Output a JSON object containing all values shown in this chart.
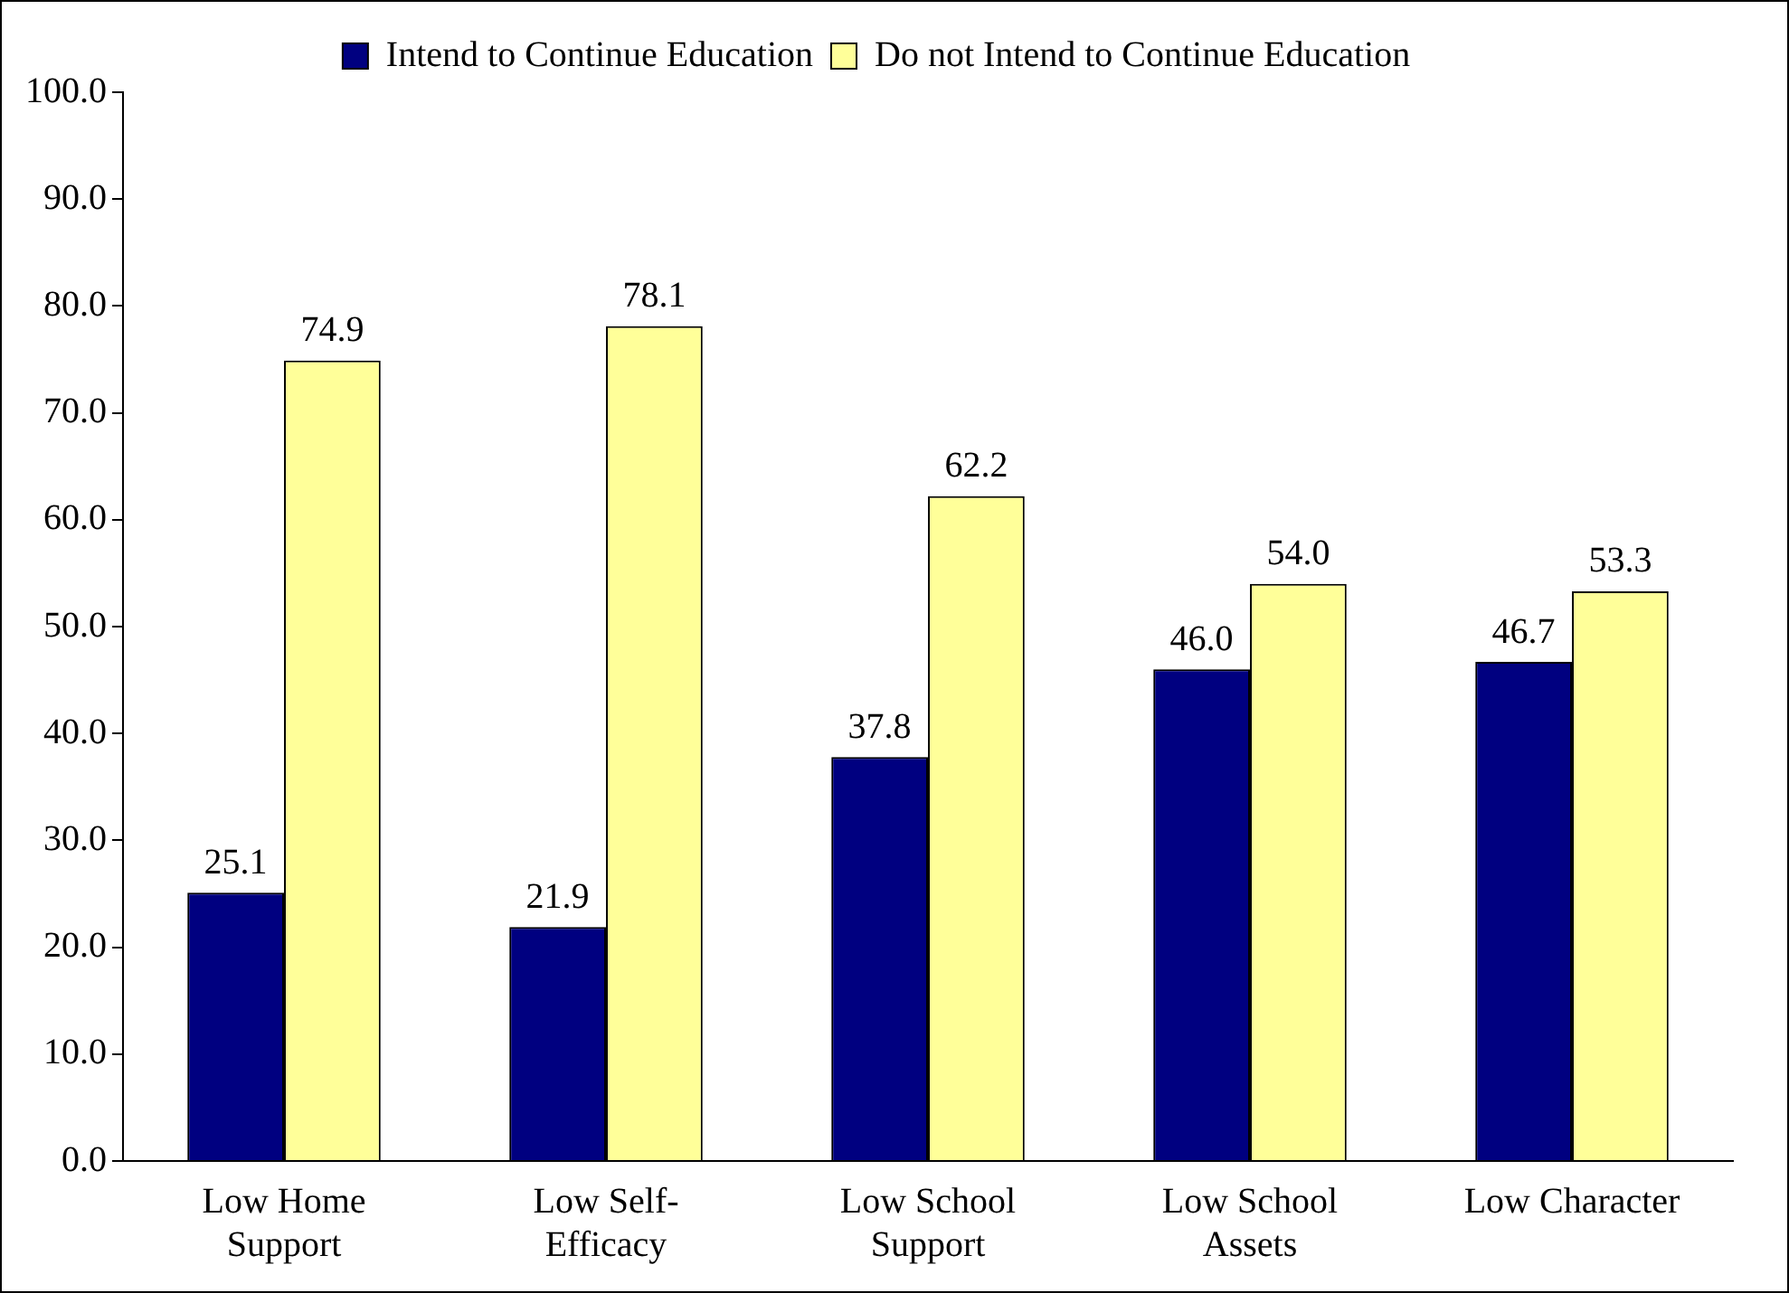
{
  "chart_data": {
    "type": "bar",
    "categories": [
      "Low Home Support",
      "Low Self-Efficacy",
      "Low School Support",
      "Low School Assets",
      "Low Character"
    ],
    "series": [
      {
        "name": "Intend to Continue Education",
        "color": "#000080",
        "values": [
          25.1,
          21.9,
          37.8,
          46.0,
          46.7
        ],
        "value_labels": [
          "25.1",
          "21.9",
          "37.8",
          "46.0",
          "46.7"
        ]
      },
      {
        "name": "Do not Intend to Continue Education",
        "color": "#ffff99",
        "values": [
          74.9,
          78.1,
          62.2,
          54.0,
          53.3
        ],
        "value_labels": [
          "74.9",
          "78.1",
          "62.2",
          "54.0",
          "53.3"
        ]
      }
    ],
    "ylim": [
      0,
      100
    ],
    "yticks": [
      {
        "value": 0,
        "label": "0.0"
      },
      {
        "value": 10,
        "label": "10.0"
      },
      {
        "value": 20,
        "label": "20.0"
      },
      {
        "value": 30,
        "label": "30.0"
      },
      {
        "value": 40,
        "label": "40.0"
      },
      {
        "value": 50,
        "label": "50.0"
      },
      {
        "value": 60,
        "label": "60.0"
      },
      {
        "value": 70,
        "label": "70.0"
      },
      {
        "value": 80,
        "label": "80.0"
      },
      {
        "value": 90,
        "label": "90.0"
      },
      {
        "value": 100,
        "label": "100.0"
      }
    ],
    "grid": false,
    "legend": "top"
  }
}
